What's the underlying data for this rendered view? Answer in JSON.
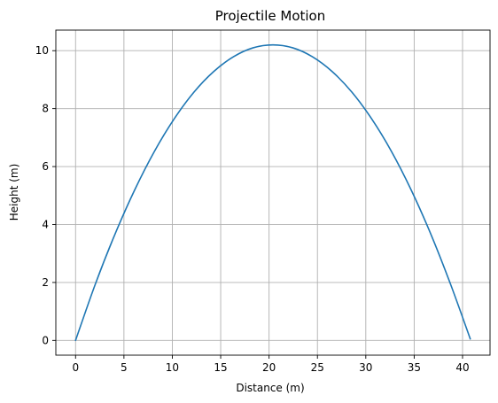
{
  "chart_data": {
    "type": "line",
    "title": "Projectile Motion",
    "xlabel": "Distance (m)",
    "ylabel": "Height (m)",
    "xlim": [
      -2.04,
      42.84
    ],
    "ylim": [
      -0.51,
      10.71
    ],
    "xticks": [
      0,
      5,
      10,
      15,
      20,
      25,
      30,
      35,
      40
    ],
    "yticks": [
      0,
      2,
      4,
      6,
      8,
      10
    ],
    "grid": true,
    "legend": "none",
    "series": [
      {
        "color": "#1f77b4",
        "x": [
          0,
          2.04,
          4.08,
          6.12,
          8.16,
          10.2,
          12.24,
          14.28,
          16.32,
          18.36,
          20.4,
          22.44,
          24.48,
          26.52,
          28.56,
          30.6,
          32.64,
          34.68,
          36.72,
          38.76,
          40.8
        ],
        "y": [
          0,
          1.94,
          3.67,
          5.2,
          6.53,
          7.65,
          8.57,
          9.28,
          9.79,
          10.1,
          10.2,
          10.1,
          9.79,
          9.28,
          8.57,
          7.65,
          6.53,
          5.2,
          3.67,
          1.94,
          0.05
        ]
      }
    ]
  }
}
